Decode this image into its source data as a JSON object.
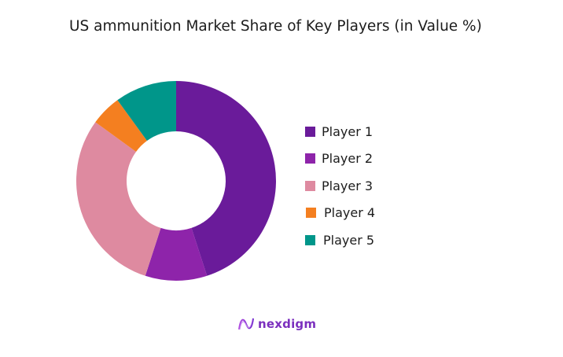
{
  "title": "US ammunition Market Share of Key Players (in Value %)",
  "chart_data": {
    "type": "pie",
    "subtype": "donut",
    "title": "US ammunition Market Share of Key Players (in Value %)",
    "categories": [
      "Player 1",
      "Player 2",
      "Player 3",
      "Player 4",
      "Player 5"
    ],
    "values": [
      45,
      10,
      30,
      5,
      10
    ],
    "colors": [
      "#6A1B9A",
      "#8E24AA",
      "#DE8AA0",
      "#F47F20",
      "#00968A"
    ],
    "start_angle_deg": 0,
    "direction": "clockwise",
    "legend_position": "right",
    "data_labels": false
  },
  "legend": {
    "items": [
      {
        "label": "Player 1",
        "color": "#6A1B9A"
      },
      {
        "label": "Player 2",
        "color": "#8E24AA"
      },
      {
        "label": "Player 3",
        "color": "#DE8AA0"
      },
      {
        "label": "Player 4",
        "color": "#F47F20"
      },
      {
        "label": "Player 5",
        "color": "#00968A"
      }
    ]
  },
  "branding": {
    "logo_text": "nexdigm",
    "logo_color": "#7B2FBE"
  }
}
